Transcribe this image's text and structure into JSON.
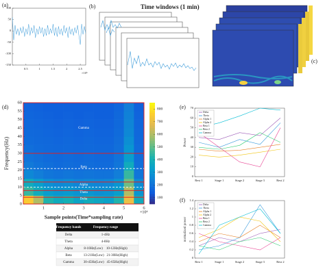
{
  "panels": {
    "b": {
      "label": "(b)",
      "title": "Time windows (1 min)"
    },
    "c": {
      "label": "(c)"
    }
  },
  "chart_data": [
    {
      "type": "line",
      "label": "(a)",
      "color": "#3a9ad9",
      "x": [
        0,
        0.05,
        0.1,
        0.15,
        0.2,
        0.25,
        0.3,
        0.35,
        0.4,
        0.45,
        0.5,
        0.55,
        0.6,
        0.65,
        0.7,
        0.75,
        0.8,
        0.85,
        0.9,
        0.95,
        1,
        1.05,
        1.1,
        1.15,
        1.2,
        1.25,
        1.3,
        1.35,
        1.4,
        1.45,
        1.5,
        1.55,
        1.6,
        1.65,
        1.7,
        1.75,
        1.8,
        1.85,
        1.9,
        1.95,
        2,
        2.05,
        2.1,
        2.15,
        2.2,
        2.25,
        2.3,
        2.35,
        2.4,
        2.45,
        2.5,
        2.55,
        2.6,
        2.65,
        2.7
      ],
      "values": [
        60,
        -40,
        25,
        -15,
        10,
        -20,
        15,
        -10,
        20,
        -25,
        10,
        -15,
        30,
        -20,
        15,
        -10,
        25,
        -30,
        10,
        -15,
        20,
        -10,
        15,
        -25,
        10,
        -20,
        25,
        -15,
        10,
        -10,
        30,
        -20,
        15,
        -25,
        20,
        -15,
        10,
        -20,
        25,
        -10,
        15,
        -30,
        20,
        -15,
        10,
        -20,
        15,
        -10,
        25,
        -20,
        -60,
        30,
        -15,
        20,
        -10
      ],
      "xlim": [
        0,
        2.7
      ],
      "ylim": [
        -150,
        100
      ],
      "xticks": [
        0.5,
        1,
        1.5,
        2,
        2.5
      ],
      "yticks": [
        -150,
        -100,
        -50,
        0,
        50,
        100
      ],
      "x_exponent": "×10⁵"
    },
    {
      "type": "heatmap",
      "label": "(d)",
      "y_label": "Frequency(Hz)",
      "x_label": "Sample points(Time*sampling rate)",
      "x_exponent": "×10⁴",
      "xlim": [
        0,
        6
      ],
      "ylim": [
        0,
        60
      ],
      "xticks": [
        1,
        2,
        3,
        4,
        5,
        6
      ],
      "yticks": [
        0,
        5,
        10,
        15,
        20,
        25,
        30,
        35,
        40,
        45,
        50,
        55,
        60
      ],
      "xbins": [
        0,
        0.5,
        1,
        1.5,
        2,
        2.5,
        3,
        3.5,
        4,
        4.5,
        5,
        5.5,
        6
      ],
      "ybins": [
        0,
        5,
        10,
        15,
        20,
        25,
        30,
        35,
        40,
        45,
        50,
        55,
        60
      ],
      "z": [
        [
          750,
          600,
          420,
          380,
          400,
          350,
          380,
          360,
          340,
          420,
          700,
          380
        ],
        [
          450,
          380,
          320,
          300,
          310,
          290,
          300,
          280,
          290,
          330,
          600,
          300
        ],
        [
          380,
          330,
          280,
          260,
          270,
          250,
          260,
          250,
          260,
          300,
          520,
          270
        ],
        [
          260,
          230,
          210,
          200,
          210,
          200,
          205,
          200,
          200,
          230,
          450,
          210
        ],
        [
          220,
          200,
          190,
          180,
          185,
          180,
          185,
          180,
          180,
          210,
          380,
          190
        ],
        [
          200,
          190,
          180,
          175,
          180,
          175,
          180,
          175,
          175,
          200,
          330,
          185
        ],
        [
          190,
          180,
          175,
          170,
          175,
          170,
          175,
          170,
          170,
          190,
          300,
          180
        ],
        [
          180,
          175,
          170,
          165,
          170,
          165,
          170,
          165,
          165,
          185,
          280,
          175
        ],
        [
          175,
          170,
          165,
          160,
          165,
          160,
          165,
          160,
          160,
          180,
          260,
          170
        ],
        [
          170,
          165,
          160,
          155,
          160,
          155,
          160,
          155,
          155,
          175,
          250,
          165
        ],
        [
          165,
          160,
          155,
          150,
          155,
          150,
          155,
          150,
          150,
          170,
          240,
          160
        ],
        [
          160,
          155,
          150,
          150,
          150,
          150,
          150,
          150,
          150,
          165,
          230,
          155
        ]
      ],
      "clim": [
        50,
        850
      ],
      "cticks": [
        100,
        200,
        300,
        400,
        500,
        600,
        700,
        800
      ],
      "band_edges": [
        4,
        8,
        13,
        30
      ],
      "dashed_edges": [
        10,
        21
      ],
      "band_labels": [
        {
          "text": "Gamma",
          "y": 45
        },
        {
          "text": "Beta",
          "y": 22
        },
        {
          "text": "Alpha",
          "y": 11.5
        },
        {
          "text": "Theta",
          "y": 7
        },
        {
          "text": "Delta",
          "y": 3
        }
      ]
    },
    {
      "type": "line",
      "label": "(e)",
      "y_label": "Power",
      "categories": [
        "Rest 1",
        "Stage 1",
        "Stage 2",
        "Stage 3",
        "Rest 2"
      ],
      "ylim": [
        0,
        70
      ],
      "yticks": [
        0,
        10,
        20,
        30,
        40,
        50,
        60,
        70
      ],
      "series": [
        {
          "name": "Delta",
          "color": "#9b59b6",
          "values": [
            40,
            38,
            45,
            42,
            60
          ]
        },
        {
          "name": "Theta",
          "color": "#3498db",
          "values": [
            35,
            30,
            38,
            33,
            55
          ]
        },
        {
          "name": "Alpha 1",
          "color": "#e67e22",
          "values": [
            28,
            26,
            27,
            30,
            33
          ]
        },
        {
          "name": "Alpha 2",
          "color": "#f1c40f",
          "values": [
            22,
            20,
            22,
            25,
            28
          ]
        },
        {
          "name": "Beta 1",
          "color": "#e84393",
          "values": [
            45,
            30,
            15,
            10,
            50
          ]
        },
        {
          "name": "Beta 2",
          "color": "#2ecc71",
          "values": [
            30,
            28,
            32,
            45,
            35
          ]
        },
        {
          "name": "Gamma",
          "color": "#00bcd4",
          "values": [
            50,
            55,
            62,
            70,
            68
          ]
        }
      ]
    },
    {
      "type": "line",
      "label": "(f)",
      "y_label": "normalized power",
      "categories": [
        "Rest 1",
        "Stage 1",
        "Stage 2",
        "Stage 3",
        "Rest 2"
      ],
      "ylim": [
        0,
        1.4
      ],
      "yticks": [
        0,
        0.2,
        0.4,
        0.6,
        0.8,
        1,
        1.2,
        1.4
      ],
      "series": [
        {
          "name": "Delta",
          "color": "#9b59b6",
          "values": [
            0.3,
            0.5,
            0.4,
            0.6,
            0.7
          ]
        },
        {
          "name": "Theta",
          "color": "#3498db",
          "values": [
            0.2,
            0.3,
            0.5,
            1.3,
            0.6
          ]
        },
        {
          "name": "Alpha 1",
          "color": "#e67e22",
          "values": [
            0.4,
            0.6,
            0.5,
            0.8,
            0.5
          ]
        },
        {
          "name": "Alpha 2",
          "color": "#f1c40f",
          "values": [
            0.5,
            0.7,
            1,
            0.9,
            0.4
          ]
        },
        {
          "name": "Beta 1",
          "color": "#e84393",
          "values": [
            0.6,
            0.4,
            0.3,
            0.2,
            0.5
          ]
        },
        {
          "name": "Beta 2",
          "color": "#2ecc71",
          "values": [
            0.3,
            0.2,
            0.4,
            0.5,
            0.3
          ]
        },
        {
          "name": "Gamma",
          "color": "#00bcd4",
          "values": [
            0.1,
            0.8,
            1,
            1.2,
            0.6
          ]
        }
      ]
    }
  ],
  "table": {
    "header": [
      "Frequency bands",
      "Frequency range"
    ],
    "rows": [
      [
        "Delta",
        "1-4Hz"
      ],
      [
        "Theta",
        "4-8Hz"
      ],
      [
        "Alpha",
        "8-10Hz(Low)    10-12Hz(High)"
      ],
      [
        "Beta",
        "13-21Hz(Low)   21-30Hz(High)"
      ],
      [
        "Gamma",
        "30-45Hz(Low)   45-65Hz(High)"
      ]
    ]
  }
}
